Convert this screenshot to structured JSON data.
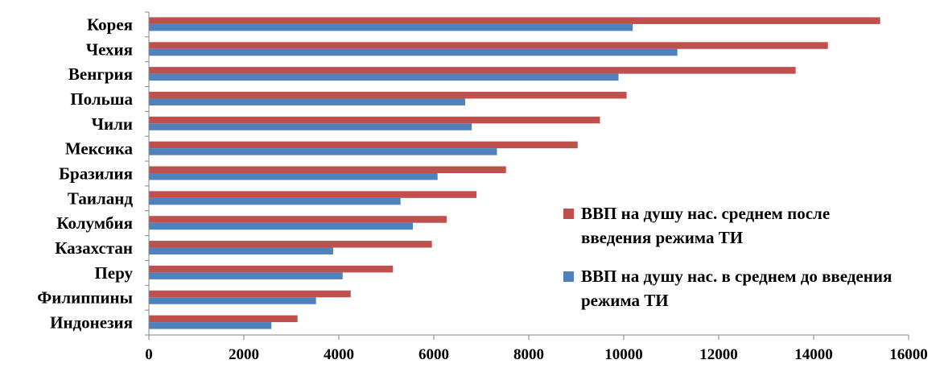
{
  "chart_data": {
    "type": "bar",
    "orientation": "horizontal",
    "categories": [
      "Корея",
      "Чехия",
      "Венгрия",
      "Польша",
      "Чили",
      "Мексика",
      "Бразилия",
      "Таиланд",
      "Колумбия",
      "Казахстан",
      "Перу",
      "Филиппины",
      "Индонезия"
    ],
    "series": [
      {
        "name": "ВВП на душу нас. среднем после введения режима ТИ",
        "color": "#C0504D",
        "values": [
          15400,
          14300,
          13620,
          10060,
          9500,
          9030,
          7520,
          6900,
          6270,
          5960,
          5140,
          4250,
          3130
        ]
      },
      {
        "name": " ВВП на душу нас. в среднем до введения режима ТИ",
        "color": "#4F81BD",
        "values": [
          10190,
          11130,
          9890,
          6660,
          6800,
          7330,
          6080,
          5300,
          5560,
          3880,
          4080,
          3520,
          2580
        ]
      }
    ],
    "xlim": [
      0,
      16000
    ],
    "xticks": [
      0,
      2000,
      4000,
      6000,
      8000,
      10000,
      12000,
      14000,
      16000
    ],
    "grid": false,
    "legend_position": "right"
  }
}
